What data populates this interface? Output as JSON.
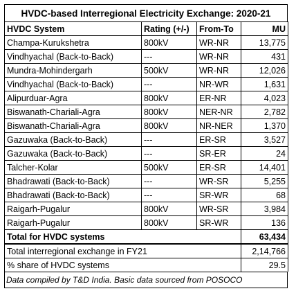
{
  "title": "HVDC-based Interregional Electricity Exchange: 2020-21",
  "headers": {
    "system": "HVDC System",
    "rating": "Rating (+/-)",
    "from_to": "From-To",
    "mu": "MU"
  },
  "rows": [
    {
      "system": "Champa-Kurukshetra",
      "rating": "800kV",
      "from_to": "WR-NR",
      "mu": "13,775"
    },
    {
      "system": "Vindhyachal (Back-to-Back)",
      "rating": "---",
      "from_to": "WR-NR",
      "mu": "431"
    },
    {
      "system": "Mundra-Mohindergarh",
      "rating": "500kV",
      "from_to": "WR-NR",
      "mu": "12,026"
    },
    {
      "system": "Vindhyachal (Back-to-Back)",
      "rating": "---",
      "from_to": "NR-WR",
      "mu": "1,631"
    },
    {
      "system": "Alipurduar-Agra",
      "rating": "800kV",
      "from_to": "ER-NR",
      "mu": "4,023"
    },
    {
      "system": "Biswanath-Chariali-Agra",
      "rating": "800kV",
      "from_to": "NER-NR",
      "mu": "2,782"
    },
    {
      "system": "Biswanath-Chariali-Agra",
      "rating": "800kV",
      "from_to": "NR-NER",
      "mu": "1,370"
    },
    {
      "system": "Gazuwaka (Back-to-Back)",
      "rating": "---",
      "from_to": "ER-SR",
      "mu": "3,527"
    },
    {
      "system": "Gazuwaka (Back-to-Back)",
      "rating": "---",
      "from_to": "SR-ER",
      "mu": "24"
    },
    {
      "system": "Talcher-Kolar",
      "rating": "500kV",
      "from_to": "ER-SR",
      "mu": "14,401"
    },
    {
      "system": "Bhadrawati (Back-to-Back)",
      "rating": "---",
      "from_to": "WR-SR",
      "mu": "5,255"
    },
    {
      "system": "Bhadrawati (Back-to-Back)",
      "rating": "---",
      "from_to": "SR-WR",
      "mu": "68"
    },
    {
      "system": "Raigarh-Pugalur",
      "rating": "800kV",
      "from_to": "WR-SR",
      "mu": "3,984"
    },
    {
      "system": "Raigarh-Pugalur",
      "rating": "800kV",
      "from_to": "SR-WR",
      "mu": "136"
    }
  ],
  "total": {
    "label": "Total for HVDC systems",
    "mu": "63,434"
  },
  "summary": [
    {
      "label": "Total interregional exchange in FY21",
      "value": "2,14,766"
    },
    {
      "label": "% share of HVDC systems",
      "value": "29.5"
    }
  ],
  "note": "Data compiled by T&D India. Basic data sourced from POSOCO"
}
